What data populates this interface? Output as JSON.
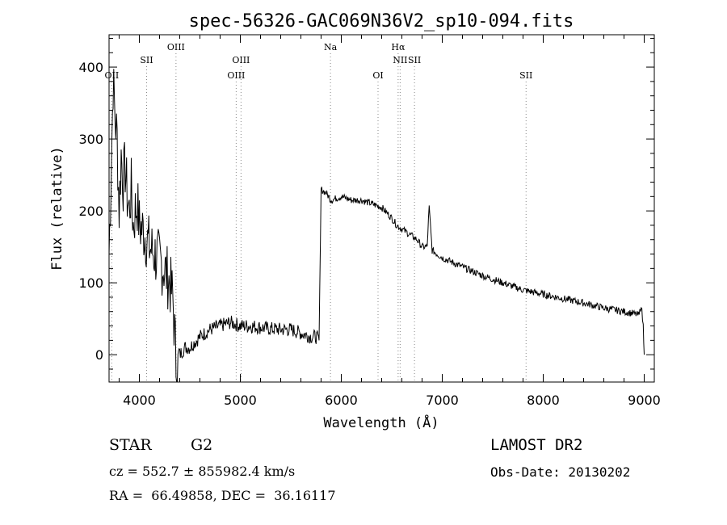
{
  "chart_data": {
    "type": "line",
    "title": "spec-56326-GAC069N36V2_sp10-094.fits",
    "xlabel": "Wavelength (Å)",
    "ylabel": "Flux (relative)",
    "xlim": [
      3700,
      9100
    ],
    "ylim": [
      -38,
      445
    ],
    "xticks": [
      4000,
      5000,
      6000,
      7000,
      8000,
      9000
    ],
    "yticks": [
      0,
      100,
      200,
      300,
      400
    ],
    "xtick_labels": [
      "4000",
      "5000",
      "6000",
      "7000",
      "8000",
      "9000"
    ],
    "ytick_labels": [
      "0",
      "100",
      "200",
      "300",
      "400"
    ],
    "grid": false,
    "series": [
      {
        "x": [
          3700,
          3720,
          3740,
          3760,
          3780,
          3800,
          3820,
          3840,
          3860,
          3880,
          3900,
          3920,
          3940,
          3960,
          3980,
          4000,
          4050,
          4100,
          4150,
          4200,
          4250,
          4300,
          4330,
          4350,
          4370,
          4400,
          4450,
          4500,
          4600,
          4700,
          4800,
          4900,
          5000,
          5100,
          5200,
          5300,
          5400,
          5500,
          5600,
          5700,
          5750,
          5780,
          5800,
          5850,
          5900,
          6000,
          6100,
          6200,
          6300,
          6400,
          6500,
          6550,
          6600,
          6650,
          6700,
          6750,
          6800,
          6850,
          6870,
          6900,
          7000,
          7200,
          7400,
          7600,
          7800,
          8000,
          8200,
          8400,
          8600,
          8800,
          8900,
          8950,
          8970,
          8990,
          9000
        ],
        "y": [
          140,
          250,
          380,
          330,
          300,
          200,
          280,
          240,
          260,
          220,
          200,
          230,
          180,
          200,
          210,
          180,
          170,
          150,
          140,
          130,
          120,
          100,
          80,
          30,
          -30,
          0,
          10,
          10,
          25,
          35,
          40,
          45,
          40,
          40,
          38,
          36,
          35,
          35,
          30,
          25,
          25,
          20,
          230,
          225,
          215,
          220,
          215,
          215,
          210,
          205,
          190,
          180,
          175,
          170,
          165,
          160,
          150,
          150,
          205,
          145,
          135,
          122,
          110,
          100,
          90,
          84,
          78,
          72,
          65,
          60,
          57,
          55,
          70,
          40,
          0
        ]
      }
    ],
    "line_ids": [
      {
        "label": "OII",
        "x": 3727,
        "row": 3
      },
      {
        "label": "SII",
        "x": 4072,
        "row": 2
      },
      {
        "label": "OIII",
        "x": 4363,
        "row": 1
      },
      {
        "label": "OIII",
        "x": 4959,
        "row": 3
      },
      {
        "label": "OIII",
        "x": 5007,
        "row": 2
      },
      {
        "label": "Na",
        "x": 5893,
        "row": 1
      },
      {
        "label": "OI",
        "x": 6364,
        "row": 3
      },
      {
        "label": "Hα",
        "x": 6563,
        "row": 1
      },
      {
        "label": "NII",
        "x": 6583,
        "row": 2
      },
      {
        "label": "SII",
        "x": 6725,
        "row": 2
      },
      {
        "label": "SII",
        "x": 7830,
        "row": 3
      }
    ]
  },
  "info": {
    "class": "STAR",
    "subclass": "G2",
    "survey": "LAMOST DR2",
    "cz_line": "cz = 552.7 ± 855982.4 km/s",
    "obs_date_line": "Obs-Date: 20130202",
    "radec_line": "RA =  66.49858, DEC =  36.16117"
  }
}
